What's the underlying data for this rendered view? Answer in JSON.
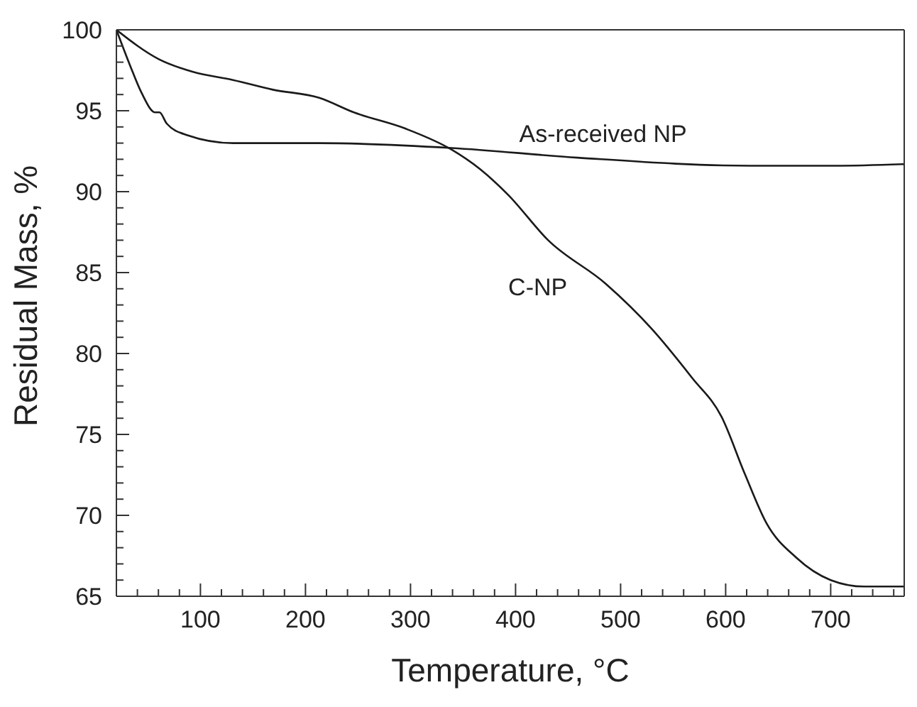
{
  "chart_data": {
    "type": "line",
    "xlabel": "Temperature, °C",
    "ylabel": "Residual Mass, %",
    "xlim": [
      20,
      770
    ],
    "ylim": [
      65,
      100
    ],
    "xticks": [
      {
        "value": 40,
        "label": null
      },
      {
        "value": 60,
        "label": null
      },
      {
        "value": 80,
        "label": null
      },
      100,
      {
        "value": 120,
        "label": null
      },
      {
        "value": 140,
        "label": null
      },
      {
        "value": 160,
        "label": null
      },
      {
        "value": 180,
        "label": null
      },
      200,
      {
        "value": 220,
        "label": null
      },
      {
        "value": 240,
        "label": null
      },
      {
        "value": 260,
        "label": null
      },
      {
        "value": 280,
        "label": null
      },
      300,
      {
        "value": 320,
        "label": null
      },
      {
        "value": 340,
        "label": null
      },
      {
        "value": 360,
        "label": null
      },
      {
        "value": 380,
        "label": null
      },
      400,
      {
        "value": 420,
        "label": null
      },
      {
        "value": 440,
        "label": null
      },
      {
        "value": 460,
        "label": null
      },
      {
        "value": 480,
        "label": null
      },
      500,
      {
        "value": 520,
        "label": null
      },
      {
        "value": 540,
        "label": null
      },
      {
        "value": 560,
        "label": null
      },
      {
        "value": 580,
        "label": null
      },
      600,
      {
        "value": 620,
        "label": null
      },
      {
        "value": 640,
        "label": null
      },
      {
        "value": 660,
        "label": null
      },
      {
        "value": 680,
        "label": null
      },
      700,
      {
        "value": 720,
        "label": null
      },
      {
        "value": 740,
        "label": null
      },
      {
        "value": 760,
        "label": null
      }
    ],
    "yticks": [
      65,
      {
        "value": 66,
        "label": null
      },
      {
        "value": 67,
        "label": null
      },
      {
        "value": 68,
        "label": null
      },
      {
        "value": 69,
        "label": null
      },
      70,
      {
        "value": 71,
        "label": null
      },
      {
        "value": 72,
        "label": null
      },
      {
        "value": 73,
        "label": null
      },
      {
        "value": 74,
        "label": null
      },
      75,
      {
        "value": 76,
        "label": null
      },
      {
        "value": 77,
        "label": null
      },
      {
        "value": 78,
        "label": null
      },
      {
        "value": 79,
        "label": null
      },
      80,
      {
        "value": 81,
        "label": null
      },
      {
        "value": 82,
        "label": null
      },
      {
        "value": 83,
        "label": null
      },
      {
        "value": 84,
        "label": null
      },
      85,
      {
        "value": 86,
        "label": null
      },
      {
        "value": 87,
        "label": null
      },
      {
        "value": 88,
        "label": null
      },
      {
        "value": 89,
        "label": null
      },
      90,
      {
        "value": 91,
        "label": null
      },
      {
        "value": 92,
        "label": null
      },
      {
        "value": 93,
        "label": null
      },
      {
        "value": 94,
        "label": null
      },
      95,
      {
        "value": 96,
        "label": null
      },
      {
        "value": 97,
        "label": null
      },
      {
        "value": 98,
        "label": null
      },
      {
        "value": 99,
        "label": null
      },
      100
    ],
    "marker": "none",
    "line_style": "solid",
    "series": [
      {
        "name": "As-received NP",
        "color": "#1a1a1a",
        "x": [
          20,
          33,
          44,
          57,
          61,
          68,
          87,
          131,
          213,
          339,
          459,
          623,
          705,
          770
        ],
        "values": [
          100,
          97.8,
          96.1,
          94.9,
          94.9,
          94.2,
          93.5,
          93.0,
          93.0,
          92.7,
          92.1,
          91.6,
          91.6,
          91.7
        ]
      },
      {
        "name": "C-NP",
        "color": "#1a1a1a",
        "x": [
          20,
          60,
          93,
          131,
          169,
          213,
          246,
          295,
          339,
          366,
          393,
          431,
          486,
          530,
          568,
          596,
          618,
          639,
          667,
          700,
          732,
          770
        ],
        "values": [
          100,
          98.2,
          97.4,
          96.9,
          96.3,
          95.8,
          94.9,
          93.9,
          92.6,
          91.4,
          89.8,
          87.0,
          84.3,
          81.5,
          78.5,
          76.1,
          72.6,
          69.5,
          67.4,
          66.0,
          65.6,
          65.6
        ]
      }
    ]
  }
}
